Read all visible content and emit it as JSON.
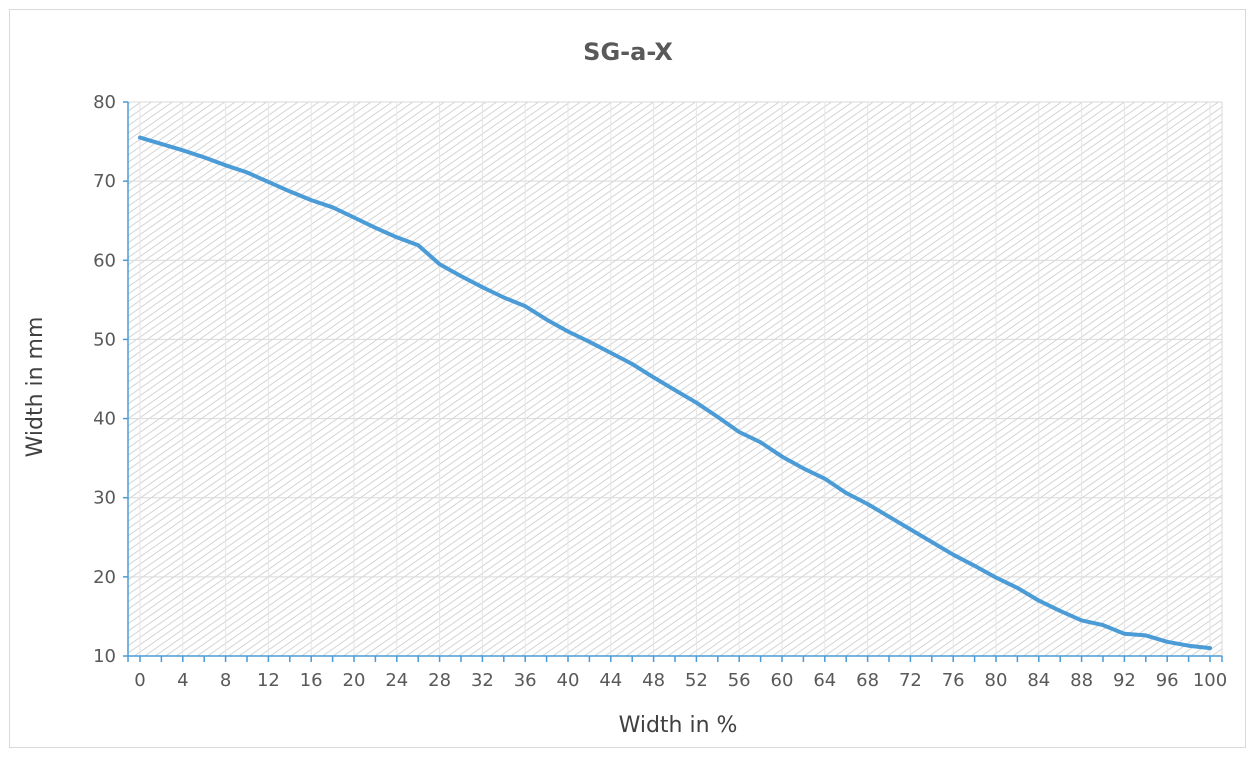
{
  "chart_data": {
    "type": "line",
    "title": "SG-a-X",
    "xlabel": "Width in %",
    "ylabel": "Width in mm",
    "xlim": [
      0,
      100
    ],
    "ylim": [
      10,
      80
    ],
    "x_ticks": [
      "0",
      "4",
      "8",
      "12",
      "16",
      "20",
      "24",
      "28",
      "32",
      "36",
      "40",
      "44",
      "48",
      "52",
      "56",
      "60",
      "64",
      "68",
      "72",
      "76",
      "80",
      "84",
      "88",
      "92",
      "96",
      "100"
    ],
    "y_ticks": [
      "10",
      "20",
      "30",
      "40",
      "50",
      "60",
      "70",
      "80"
    ],
    "grid": true,
    "legend": "none",
    "series": [
      {
        "color": "#4a9bd6",
        "x": [
          0,
          2,
          4,
          6,
          8,
          10,
          12,
          14,
          16,
          18,
          20,
          22,
          24,
          26,
          28,
          30,
          32,
          34,
          36,
          38,
          40,
          42,
          44,
          46,
          48,
          50,
          52,
          54,
          56,
          58,
          60,
          62,
          64,
          66,
          68,
          70,
          72,
          74,
          76,
          78,
          80,
          82,
          84,
          86,
          88,
          90,
          92,
          94,
          96,
          98,
          100
        ],
        "y": [
          75.5,
          74.7,
          73.9,
          73.0,
          72.0,
          71.1,
          69.9,
          68.7,
          67.6,
          66.7,
          65.4,
          64.1,
          62.9,
          61.9,
          59.5,
          58.0,
          56.6,
          55.3,
          54.2,
          52.5,
          51.0,
          49.7,
          48.3,
          46.9,
          45.2,
          43.6,
          42.0,
          40.2,
          38.3,
          37.0,
          35.2,
          33.7,
          32.4,
          30.6,
          29.2,
          27.6,
          26.0,
          24.4,
          22.8,
          21.4,
          19.9,
          18.6,
          17.0,
          15.7,
          14.5,
          13.9,
          12.8,
          12.6,
          11.8,
          11.3,
          11.0
        ]
      }
    ]
  }
}
